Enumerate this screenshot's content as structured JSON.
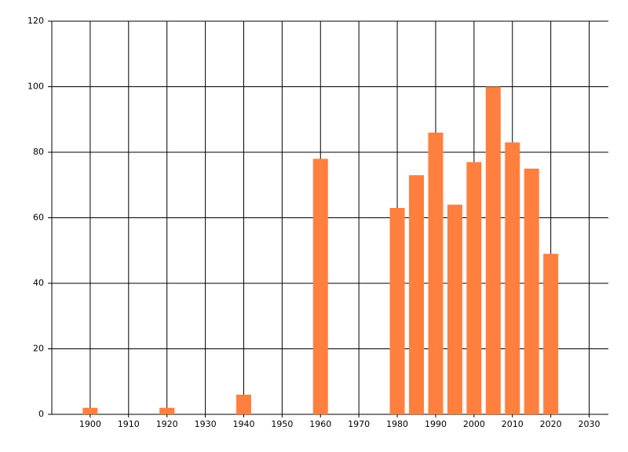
{
  "chart_data": {
    "type": "bar",
    "x": [
      1900,
      1920,
      1940,
      1960,
      1980,
      1985,
      1990,
      1995,
      2000,
      2005,
      2010,
      2015,
      2020
    ],
    "values": [
      2,
      2,
      6,
      78,
      63,
      73,
      86,
      64,
      77,
      100,
      83,
      75,
      49
    ],
    "color": "#ff7f3f",
    "xlim": [
      1890,
      2035
    ],
    "xticks": [
      1900,
      1910,
      1920,
      1930,
      1940,
      1950,
      1960,
      1970,
      1980,
      1990,
      2000,
      2010,
      2020,
      2030
    ],
    "ylim": [
      0,
      120
    ],
    "yticks": [
      0,
      20,
      40,
      60,
      80,
      100,
      120
    ],
    "grid": true
  }
}
